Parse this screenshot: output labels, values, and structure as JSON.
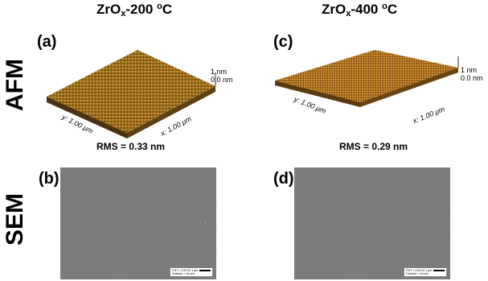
{
  "columns": [
    {
      "title_main": "ZrO",
      "title_sub": "x",
      "title_rest": "-200 ",
      "title_deg": "o",
      "title_unit": "C"
    },
    {
      "title_main": "ZrO",
      "title_sub": "x",
      "title_rest": "-400 ",
      "title_deg": "o",
      "title_unit": "C"
    }
  ],
  "rows": {
    "afm": "AFM",
    "sem": "SEM"
  },
  "panels": {
    "a": {
      "label": "(a)",
      "rms": "RMS = 0.33 nm",
      "y_axis": "y: 1.00 μm",
      "x_axis": "x: 1.00 μm",
      "z_top": "1 nm",
      "z_bottom": "0.0 nm"
    },
    "c": {
      "label": "(c)",
      "rms": "RMS = 0.29 nm",
      "y_axis": "y: 1.00 μm",
      "x_axis": "x: 1.00 μm",
      "z_top": "1 nm",
      "z_bottom": "0.0 nm"
    },
    "b": {
      "label": "(b)",
      "info_line1": "EHT = 4.00 kV",
      "info_line2": "Detector = InLens",
      "scale": "1 μm"
    },
    "d": {
      "label": "(d)",
      "info_line1": "EHT = 4.00 kV",
      "info_line2": "Detector = InLens",
      "scale": "1 μm"
    }
  },
  "colors": {
    "afm_dark": "#6b4a12",
    "afm_mid": "#a8741e",
    "afm_light": "#d9b54a",
    "sem_gray": "#7c7c7c"
  }
}
